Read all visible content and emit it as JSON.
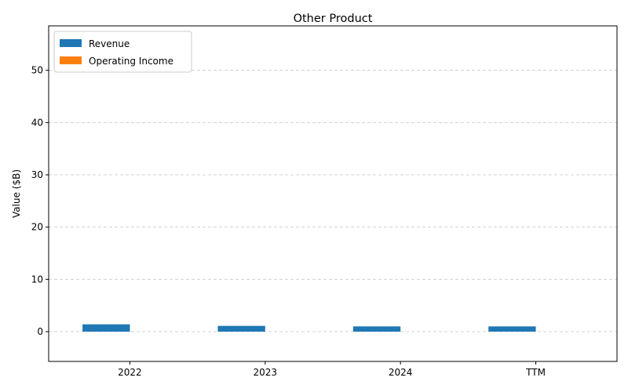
{
  "chart_data": {
    "type": "bar",
    "title": "Other Product",
    "xlabel": "",
    "ylabel": "Value ($B)",
    "categories": [
      "2022",
      "2023",
      "2024",
      "TTM"
    ],
    "series": [
      {
        "name": "Revenue",
        "color": "#1f77b4",
        "values": [
          1.4,
          1.1,
          1.0,
          1.0
        ]
      },
      {
        "name": "Operating Income",
        "color": "#ff7f0e",
        "values": [
          0,
          0,
          0,
          0
        ]
      }
    ],
    "ylim": [
      -5.7,
      58.5
    ],
    "yticks": [
      0,
      10,
      20,
      30,
      40,
      50
    ],
    "grid": true,
    "legend_position": "top-left"
  }
}
